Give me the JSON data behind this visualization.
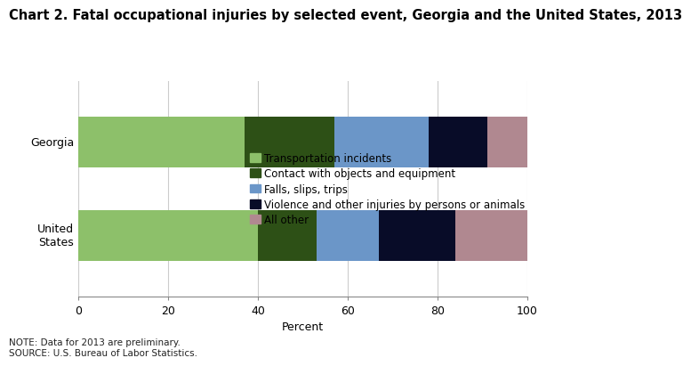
{
  "title": "Chart 2. Fatal occupational injuries by selected event, Georgia and the United States, 2013",
  "categories": [
    "Georgia",
    "United\nStates"
  ],
  "segments": [
    {
      "label": "Transportation incidents",
      "color": "#8dc06a",
      "values": [
        37,
        40
      ]
    },
    {
      "label": "Contact with objects and equipment",
      "color": "#2d5016",
      "values": [
        20,
        13
      ]
    },
    {
      "label": "Falls, slips, trips",
      "color": "#6b96c8",
      "values": [
        21,
        14
      ]
    },
    {
      "label": "Violence and other injuries by persons or animals",
      "color": "#080c28",
      "values": [
        13,
        17
      ]
    },
    {
      "label": "All other",
      "color": "#b08890",
      "values": [
        9,
        16
      ]
    }
  ],
  "xlabel": "Percent",
  "xlim": [
    0,
    100
  ],
  "xticks": [
    0,
    20,
    40,
    60,
    80,
    100
  ],
  "note": "NOTE: Data for 2013 are preliminary.\nSOURCE: U.S. Bureau of Labor Statistics.",
  "title_fontsize": 10.5,
  "legend_fontsize": 8.5,
  "tick_fontsize": 9,
  "note_fontsize": 7.5,
  "bar_height": 0.55,
  "background_color": "#ffffff"
}
